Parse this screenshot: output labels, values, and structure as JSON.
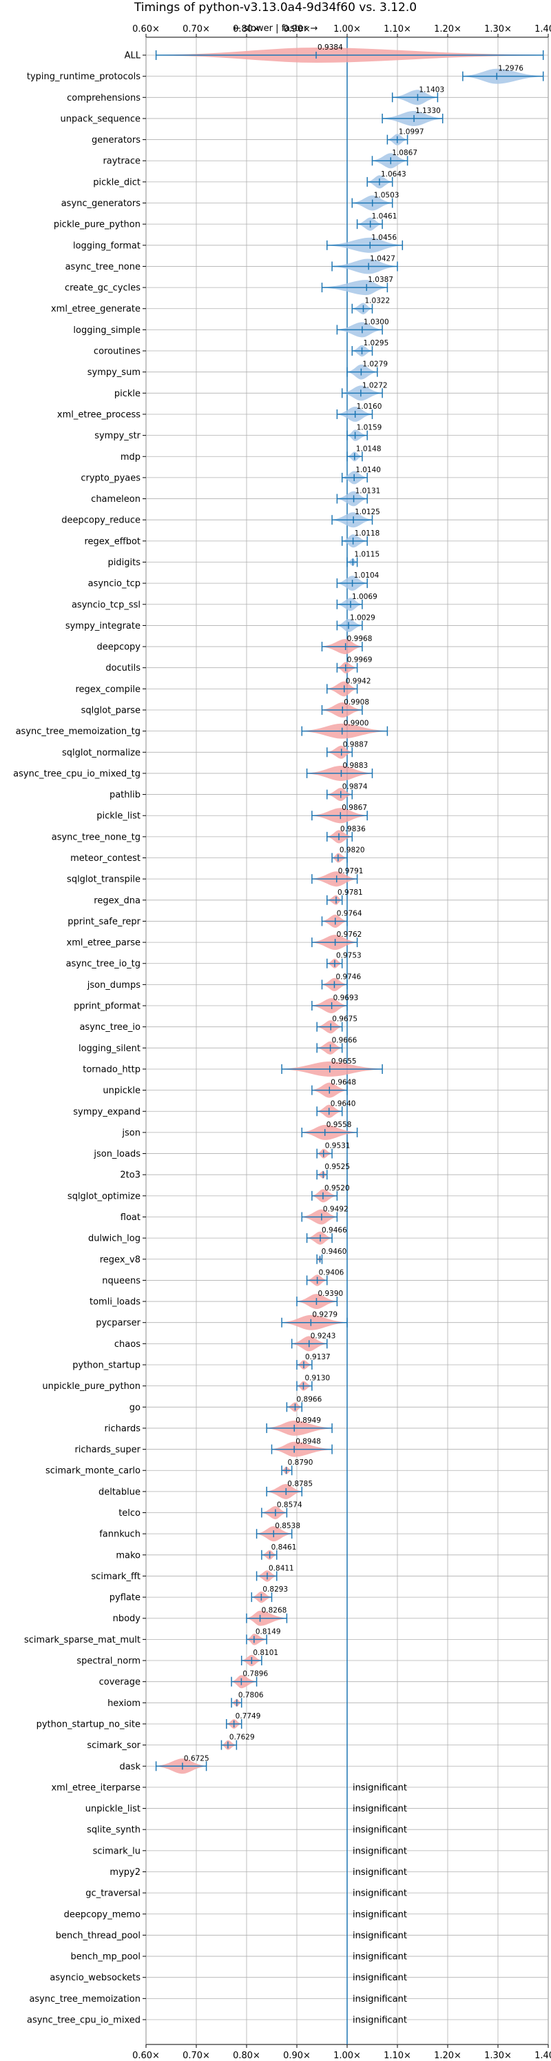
{
  "chart_data": {
    "type": "violin",
    "title": "Timings of python-v3.13.0a4-9d34f60 vs. 3.12.0",
    "axis_hint": "← slower | faster →",
    "xlim": [
      0.6,
      1.4
    ],
    "ticks": [
      0.6,
      0.7,
      0.8,
      0.9,
      1.0,
      1.1,
      1.2,
      1.3,
      1.4
    ],
    "tick_labels": [
      "0.60×",
      "0.70×",
      "0.80×",
      "0.90×",
      "1.00×",
      "1.10×",
      "1.20×",
      "1.30×",
      "1.40×"
    ],
    "reference_line": 1.0,
    "grid": true,
    "colors": {
      "faster": "#a7c7e7",
      "slower": "#f4a6a6",
      "errorbar": "#1f77b4",
      "reference": "#1f77b4"
    },
    "insignificant_text": "insignificant",
    "benchmarks": [
      {
        "name": "ALL",
        "value": 0.9384,
        "label": "0.9384",
        "lo": 0.62,
        "hi": 1.39
      },
      {
        "name": "typing_runtime_protocols",
        "value": 1.2976,
        "label": "1.2976",
        "lo": 1.23,
        "hi": 1.39
      },
      {
        "name": "comprehensions",
        "value": 1.1403,
        "label": "1.1403",
        "lo": 1.09,
        "hi": 1.18
      },
      {
        "name": "unpack_sequence",
        "value": 1.133,
        "label": "1.1330",
        "lo": 1.07,
        "hi": 1.19
      },
      {
        "name": "generators",
        "value": 1.0997,
        "label": "1.0997",
        "lo": 1.08,
        "hi": 1.12
      },
      {
        "name": "raytrace",
        "value": 1.0867,
        "label": "1.0867",
        "lo": 1.05,
        "hi": 1.12
      },
      {
        "name": "pickle_dict",
        "value": 1.0643,
        "label": "1.0643",
        "lo": 1.04,
        "hi": 1.09
      },
      {
        "name": "async_generators",
        "value": 1.0503,
        "label": "1.0503",
        "lo": 1.01,
        "hi": 1.09
      },
      {
        "name": "pickle_pure_python",
        "value": 1.0461,
        "label": "1.0461",
        "lo": 1.02,
        "hi": 1.07
      },
      {
        "name": "logging_format",
        "value": 1.0456,
        "label": "1.0456",
        "lo": 0.96,
        "hi": 1.11
      },
      {
        "name": "async_tree_none",
        "value": 1.0427,
        "label": "1.0427",
        "lo": 0.97,
        "hi": 1.1
      },
      {
        "name": "create_gc_cycles",
        "value": 1.0387,
        "label": "1.0387",
        "lo": 0.95,
        "hi": 1.08
      },
      {
        "name": "xml_etree_generate",
        "value": 1.0322,
        "label": "1.0322",
        "lo": 1.01,
        "hi": 1.05
      },
      {
        "name": "logging_simple",
        "value": 1.03,
        "label": "1.0300",
        "lo": 0.98,
        "hi": 1.07
      },
      {
        "name": "coroutines",
        "value": 1.0295,
        "label": "1.0295",
        "lo": 1.01,
        "hi": 1.05
      },
      {
        "name": "sympy_sum",
        "value": 1.0279,
        "label": "1.0279",
        "lo": 1.0,
        "hi": 1.06
      },
      {
        "name": "pickle",
        "value": 1.0272,
        "label": "1.0272",
        "lo": 0.99,
        "hi": 1.07
      },
      {
        "name": "xml_etree_process",
        "value": 1.016,
        "label": "1.0160",
        "lo": 0.98,
        "hi": 1.05
      },
      {
        "name": "sympy_str",
        "value": 1.0159,
        "label": "1.0159",
        "lo": 1.0,
        "hi": 1.04
      },
      {
        "name": "mdp",
        "value": 1.0148,
        "label": "1.0148",
        "lo": 1.0,
        "hi": 1.03
      },
      {
        "name": "crypto_pyaes",
        "value": 1.014,
        "label": "1.0140",
        "lo": 0.99,
        "hi": 1.04
      },
      {
        "name": "chameleon",
        "value": 1.0131,
        "label": "1.0131",
        "lo": 0.98,
        "hi": 1.04
      },
      {
        "name": "deepcopy_reduce",
        "value": 1.0125,
        "label": "1.0125",
        "lo": 0.97,
        "hi": 1.05
      },
      {
        "name": "regex_effbot",
        "value": 1.0118,
        "label": "1.0118",
        "lo": 0.99,
        "hi": 1.04
      },
      {
        "name": "pidigits",
        "value": 1.0115,
        "label": "1.0115",
        "lo": 1.0,
        "hi": 1.02
      },
      {
        "name": "asyncio_tcp",
        "value": 1.0104,
        "label": "1.0104",
        "lo": 0.98,
        "hi": 1.04
      },
      {
        "name": "asyncio_tcp_ssl",
        "value": 1.0069,
        "label": "1.0069",
        "lo": 0.98,
        "hi": 1.03
      },
      {
        "name": "sympy_integrate",
        "value": 1.0029,
        "label": "1.0029",
        "lo": 0.98,
        "hi": 1.03
      },
      {
        "name": "deepcopy",
        "value": 0.9968,
        "label": "0.9968",
        "lo": 0.95,
        "hi": 1.03
      },
      {
        "name": "docutils",
        "value": 0.9969,
        "label": "0.9969",
        "lo": 0.98,
        "hi": 1.02
      },
      {
        "name": "regex_compile",
        "value": 0.9942,
        "label": "0.9942",
        "lo": 0.96,
        "hi": 1.02
      },
      {
        "name": "sqlglot_parse",
        "value": 0.9908,
        "label": "0.9908",
        "lo": 0.95,
        "hi": 1.03
      },
      {
        "name": "async_tree_memoization_tg",
        "value": 0.99,
        "label": "0.9900",
        "lo": 0.91,
        "hi": 1.08
      },
      {
        "name": "sqlglot_normalize",
        "value": 0.9887,
        "label": "0.9887",
        "lo": 0.96,
        "hi": 1.01
      },
      {
        "name": "async_tree_cpu_io_mixed_tg",
        "value": 0.9883,
        "label": "0.9883",
        "lo": 0.92,
        "hi": 1.05
      },
      {
        "name": "pathlib",
        "value": 0.9874,
        "label": "0.9874",
        "lo": 0.96,
        "hi": 1.01
      },
      {
        "name": "pickle_list",
        "value": 0.9867,
        "label": "0.9867",
        "lo": 0.93,
        "hi": 1.04
      },
      {
        "name": "async_tree_none_tg",
        "value": 0.9836,
        "label": "0.9836",
        "lo": 0.96,
        "hi": 1.01
      },
      {
        "name": "meteor_contest",
        "value": 0.982,
        "label": "0.9820",
        "lo": 0.97,
        "hi": 1.0
      },
      {
        "name": "sqlglot_transpile",
        "value": 0.9791,
        "label": "0.9791",
        "lo": 0.93,
        "hi": 1.02
      },
      {
        "name": "regex_dna",
        "value": 0.9781,
        "label": "0.9781",
        "lo": 0.96,
        "hi": 0.99
      },
      {
        "name": "pprint_safe_repr",
        "value": 0.9764,
        "label": "0.9764",
        "lo": 0.95,
        "hi": 1.0
      },
      {
        "name": "xml_etree_parse",
        "value": 0.9762,
        "label": "0.9762",
        "lo": 0.93,
        "hi": 1.02
      },
      {
        "name": "async_tree_io_tg",
        "value": 0.9753,
        "label": "0.9753",
        "lo": 0.96,
        "hi": 0.99
      },
      {
        "name": "json_dumps",
        "value": 0.9746,
        "label": "0.9746",
        "lo": 0.95,
        "hi": 1.0
      },
      {
        "name": "pprint_pformat",
        "value": 0.9693,
        "label": "0.9693",
        "lo": 0.93,
        "hi": 1.0
      },
      {
        "name": "async_tree_io",
        "value": 0.9675,
        "label": "0.9675",
        "lo": 0.94,
        "hi": 0.99
      },
      {
        "name": "logging_silent",
        "value": 0.9666,
        "label": "0.9666",
        "lo": 0.94,
        "hi": 0.99
      },
      {
        "name": "tornado_http",
        "value": 0.9655,
        "label": "0.9655",
        "lo": 0.87,
        "hi": 1.07
      },
      {
        "name": "unpickle",
        "value": 0.9648,
        "label": "0.9648",
        "lo": 0.93,
        "hi": 1.0
      },
      {
        "name": "sympy_expand",
        "value": 0.964,
        "label": "0.9640",
        "lo": 0.94,
        "hi": 0.99
      },
      {
        "name": "json",
        "value": 0.9558,
        "label": "0.9558",
        "lo": 0.91,
        "hi": 1.02
      },
      {
        "name": "json_loads",
        "value": 0.9531,
        "label": "0.9531",
        "lo": 0.94,
        "hi": 0.97
      },
      {
        "name": "2to3",
        "value": 0.9525,
        "label": "0.9525",
        "lo": 0.94,
        "hi": 0.96
      },
      {
        "name": "sqlglot_optimize",
        "value": 0.952,
        "label": "0.9520",
        "lo": 0.93,
        "hi": 0.98
      },
      {
        "name": "float",
        "value": 0.9492,
        "label": "0.9492",
        "lo": 0.91,
        "hi": 0.98
      },
      {
        "name": "dulwich_log",
        "value": 0.9466,
        "label": "0.9466",
        "lo": 0.92,
        "hi": 0.97
      },
      {
        "name": "regex_v8",
        "value": 0.946,
        "label": "0.9460",
        "lo": 0.94,
        "hi": 0.95
      },
      {
        "name": "nqueens",
        "value": 0.9406,
        "label": "0.9406",
        "lo": 0.92,
        "hi": 0.96
      },
      {
        "name": "tomli_loads",
        "value": 0.939,
        "label": "0.9390",
        "lo": 0.9,
        "hi": 0.98
      },
      {
        "name": "pycparser",
        "value": 0.9279,
        "label": "0.9279",
        "lo": 0.87,
        "hi": 1.0
      },
      {
        "name": "chaos",
        "value": 0.9243,
        "label": "0.9243",
        "lo": 0.89,
        "hi": 0.96
      },
      {
        "name": "python_startup",
        "value": 0.9137,
        "label": "0.9137",
        "lo": 0.9,
        "hi": 0.93
      },
      {
        "name": "unpickle_pure_python",
        "value": 0.913,
        "label": "0.9130",
        "lo": 0.9,
        "hi": 0.93
      },
      {
        "name": "go",
        "value": 0.8966,
        "label": "0.8966",
        "lo": 0.88,
        "hi": 0.91
      },
      {
        "name": "richards",
        "value": 0.8949,
        "label": "0.8949",
        "lo": 0.84,
        "hi": 0.97
      },
      {
        "name": "richards_super",
        "value": 0.8948,
        "label": "0.8948",
        "lo": 0.85,
        "hi": 0.97
      },
      {
        "name": "scimark_monte_carlo",
        "value": 0.879,
        "label": "0.8790",
        "lo": 0.87,
        "hi": 0.89
      },
      {
        "name": "deltablue",
        "value": 0.8785,
        "label": "0.8785",
        "lo": 0.84,
        "hi": 0.91
      },
      {
        "name": "telco",
        "value": 0.8574,
        "label": "0.8574",
        "lo": 0.83,
        "hi": 0.88
      },
      {
        "name": "fannkuch",
        "value": 0.8538,
        "label": "0.8538",
        "lo": 0.82,
        "hi": 0.89
      },
      {
        "name": "mako",
        "value": 0.8461,
        "label": "0.8461",
        "lo": 0.83,
        "hi": 0.86
      },
      {
        "name": "scimark_fft",
        "value": 0.8411,
        "label": "0.8411",
        "lo": 0.82,
        "hi": 0.86
      },
      {
        "name": "pyflate",
        "value": 0.8293,
        "label": "0.8293",
        "lo": 0.81,
        "hi": 0.85
      },
      {
        "name": "nbody",
        "value": 0.8268,
        "label": "0.8268",
        "lo": 0.8,
        "hi": 0.88
      },
      {
        "name": "scimark_sparse_mat_mult",
        "value": 0.8149,
        "label": "0.8149",
        "lo": 0.8,
        "hi": 0.84
      },
      {
        "name": "spectral_norm",
        "value": 0.8101,
        "label": "0.8101",
        "lo": 0.79,
        "hi": 0.83
      },
      {
        "name": "coverage",
        "value": 0.7896,
        "label": "0.7896",
        "lo": 0.77,
        "hi": 0.82
      },
      {
        "name": "hexiom",
        "value": 0.7806,
        "label": "0.7806",
        "lo": 0.77,
        "hi": 0.79
      },
      {
        "name": "python_startup_no_site",
        "value": 0.7749,
        "label": "0.7749",
        "lo": 0.76,
        "hi": 0.79
      },
      {
        "name": "scimark_sor",
        "value": 0.7629,
        "label": "0.7629",
        "lo": 0.75,
        "hi": 0.78
      },
      {
        "name": "dask",
        "value": 0.6725,
        "label": "0.6725",
        "lo": 0.62,
        "hi": 0.72
      },
      {
        "name": "xml_etree_iterparse",
        "value": null,
        "label": ""
      },
      {
        "name": "unpickle_list",
        "value": null,
        "label": ""
      },
      {
        "name": "sqlite_synth",
        "value": null,
        "label": ""
      },
      {
        "name": "scimark_lu",
        "value": null,
        "label": ""
      },
      {
        "name": "mypy2",
        "value": null,
        "label": ""
      },
      {
        "name": "gc_traversal",
        "value": null,
        "label": ""
      },
      {
        "name": "deepcopy_memo",
        "value": null,
        "label": ""
      },
      {
        "name": "bench_thread_pool",
        "value": null,
        "label": ""
      },
      {
        "name": "bench_mp_pool",
        "value": null,
        "label": ""
      },
      {
        "name": "asyncio_websockets",
        "value": null,
        "label": ""
      },
      {
        "name": "async_tree_memoization",
        "value": null,
        "label": ""
      },
      {
        "name": "async_tree_cpu_io_mixed",
        "value": null,
        "label": ""
      }
    ]
  }
}
